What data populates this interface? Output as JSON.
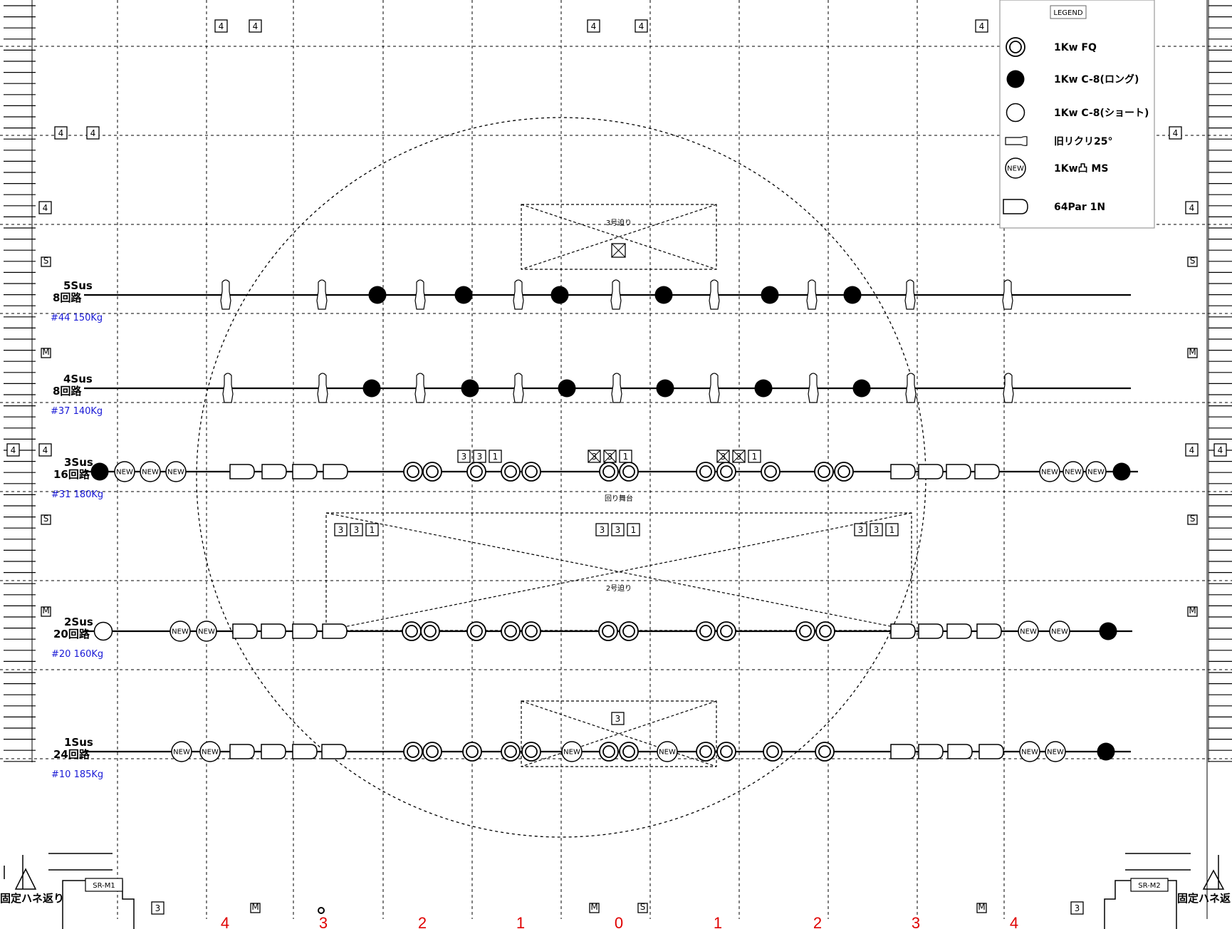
{
  "legend": {
    "title": "LEGEND",
    "items": [
      {
        "type": "fq",
        "label": "1Kw FQ"
      },
      {
        "type": "c8long",
        "label": "1Kw C-8(ロング)"
      },
      {
        "type": "c8short",
        "label": "1Kw C-8(ショート)"
      },
      {
        "type": "leko",
        "label": "旧リクリ25°"
      },
      {
        "type": "new",
        "label": "1Kw凸 MS"
      },
      {
        "type": "par",
        "label": "64Par 1N"
      }
    ]
  },
  "new_text": "NEW",
  "axis_labels": [
    "4",
    "3",
    "2",
    "1",
    "0",
    "1",
    "2",
    "3",
    "4"
  ],
  "battens": [
    {
      "name": "5Sus",
      "circuits": "8回路",
      "info": "#44 150Kg"
    },
    {
      "name": "4Sus",
      "circuits": "8回路",
      "info": "#37 140Kg"
    },
    {
      "name": "3Sus",
      "circuits": "16回路",
      "info": "#31 180Kg"
    },
    {
      "name": "2Sus",
      "circuits": "20回路",
      "info": "#20 160Kg"
    },
    {
      "name": "1Sus",
      "circuits": "24回路",
      "info": "#10 185Kg"
    }
  ],
  "annotations": {
    "trap3": "3号迫り",
    "turntable": "回り舞台",
    "trap2": "2号迫り",
    "fixed_left": "固定ハネ返り",
    "fixed_right": "固定ハネ返",
    "sr_m1": "SR-M1",
    "sr_m2": "SR-M2"
  },
  "box_values": {
    "four": "4",
    "three": "3",
    "one": "1",
    "s": "S",
    "m": "M"
  }
}
